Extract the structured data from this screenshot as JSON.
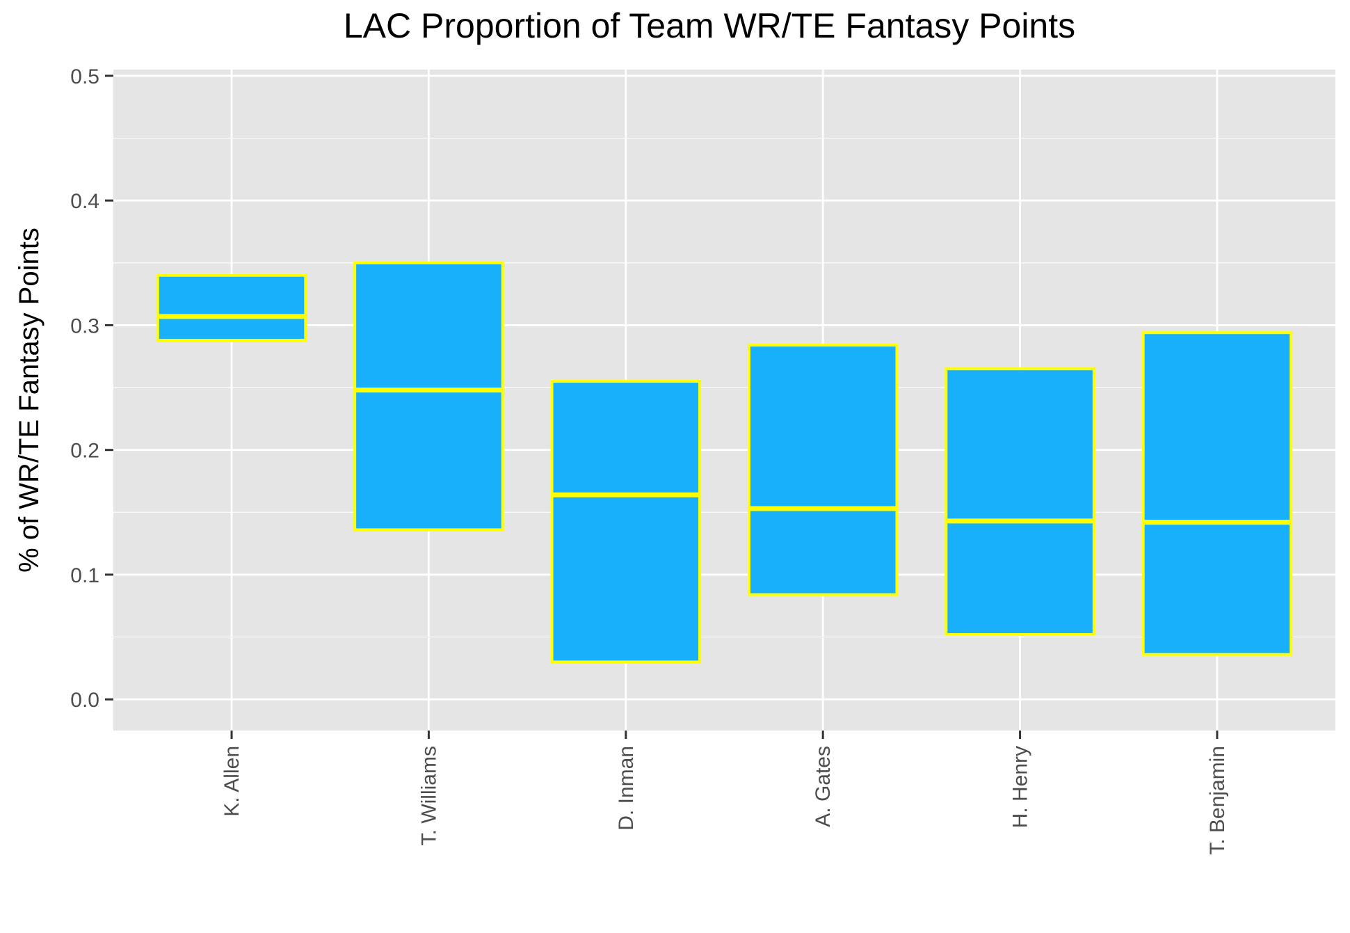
{
  "chart_data": {
    "type": "box",
    "title": "LAC Proportion of Team WR/TE Fantasy Points",
    "xlabel": "",
    "ylabel": "% of WR/TE Fantasy Points",
    "ylim": [
      -0.025,
      0.505
    ],
    "yticks": [
      "0.0",
      "0.1",
      "0.2",
      "0.3",
      "0.4",
      "0.5"
    ],
    "ytick_values": [
      0.0,
      0.1,
      0.2,
      0.3,
      0.4,
      0.5
    ],
    "grid": true,
    "legend": "none",
    "colors": {
      "panel": "#e5e5e5",
      "grid": "#ffffff",
      "box_fill": "#19b0fb",
      "box_stroke": "#ffff00"
    },
    "categories": [
      "K. Allen",
      "T. Williams",
      "D. Inman",
      "A. Gates",
      "H. Henry",
      "T. Benjamin"
    ],
    "boxes": [
      {
        "name": "K. Allen",
        "low": 0.288,
        "median": 0.307,
        "high": 0.34
      },
      {
        "name": "T. Williams",
        "low": 0.136,
        "median": 0.248,
        "high": 0.35
      },
      {
        "name": "D. Inman",
        "low": 0.03,
        "median": 0.164,
        "high": 0.255
      },
      {
        "name": "A. Gates",
        "low": 0.084,
        "median": 0.153,
        "high": 0.284
      },
      {
        "name": "H. Henry",
        "low": 0.052,
        "median": 0.143,
        "high": 0.265
      },
      {
        "name": "T. Benjamin",
        "low": 0.036,
        "median": 0.142,
        "high": 0.294
      }
    ]
  }
}
